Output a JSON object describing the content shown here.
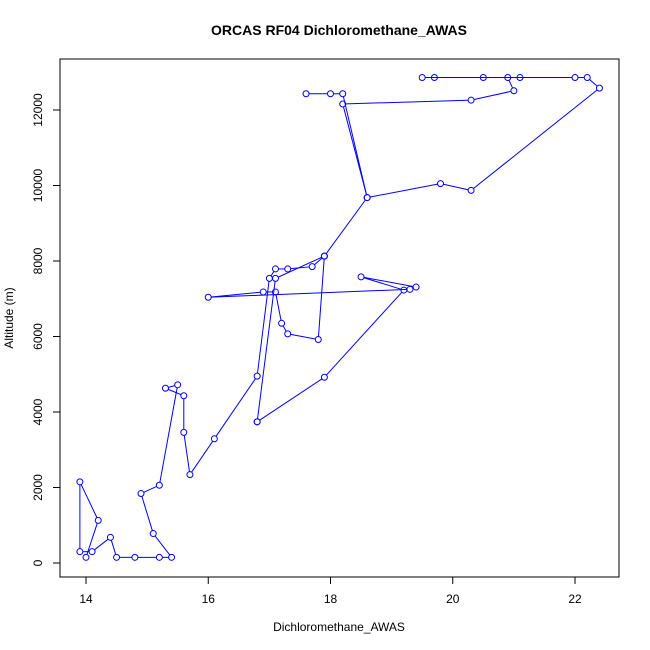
{
  "chart_data": {
    "type": "line",
    "title": "ORCAS RF04 Dichloromethane_AWAS",
    "xlabel": "Dichloromethane_AWAS",
    "ylabel": "Altitude (m)",
    "xlim": [
      13.8,
      22.5
    ],
    "ylim": [
      0,
      13000
    ],
    "x_ticks": [
      14,
      16,
      18,
      20,
      22
    ],
    "y_ticks": [
      0,
      2000,
      4000,
      6000,
      8000,
      10000,
      12000
    ],
    "x_tick_labels": [
      "14",
      "16",
      "18",
      "20",
      "22"
    ],
    "y_tick_labels": [
      "0",
      "2000",
      "4000",
      "6000",
      "8000",
      "10000",
      "12000"
    ],
    "grid": false,
    "markers": "open-circle",
    "color": "#0000ff",
    "series": [
      {
        "x": [
          14.0,
          14.2,
          13.9,
          13.9,
          14.1,
          14.4,
          14.5,
          14.8,
          15.2,
          15.4,
          15.1,
          14.9,
          15.2,
          15.5,
          15.3,
          15.6,
          15.6,
          15.7,
          16.1,
          16.8,
          17.0,
          17.1,
          17.3,
          17.7,
          17.9,
          17.8,
          17.3,
          17.2,
          17.1,
          16.9,
          16.0,
          19.3,
          19.4,
          18.5,
          19.2,
          17.9,
          16.8,
          16.8,
          17.1,
          17.9,
          18.6,
          18.2,
          20.3,
          21.0,
          20.9,
          21.1,
          19.5,
          19.7,
          20.5,
          22.0,
          22.2,
          22.4,
          20.3,
          19.8,
          18.6,
          18.2,
          18.0,
          17.6
        ],
        "y": [
          150,
          1130,
          2150,
          300,
          300,
          680,
          150,
          150,
          150,
          150,
          780,
          1840,
          2060,
          4720,
          4630,
          4430,
          3460,
          2340,
          3290,
          4950,
          7540,
          7790,
          7790,
          7850,
          8130,
          5920,
          6070,
          6350,
          7180,
          7180,
          7040,
          7250,
          7310,
          7580,
          7230,
          4920,
          3740,
          3740,
          7540,
          8130,
          9680,
          12160,
          12260,
          12510,
          12860,
          12860,
          12860,
          12860,
          12860,
          12860,
          12860,
          12580,
          9870,
          10050,
          9680,
          12430,
          12430,
          12430
        ]
      }
    ]
  }
}
